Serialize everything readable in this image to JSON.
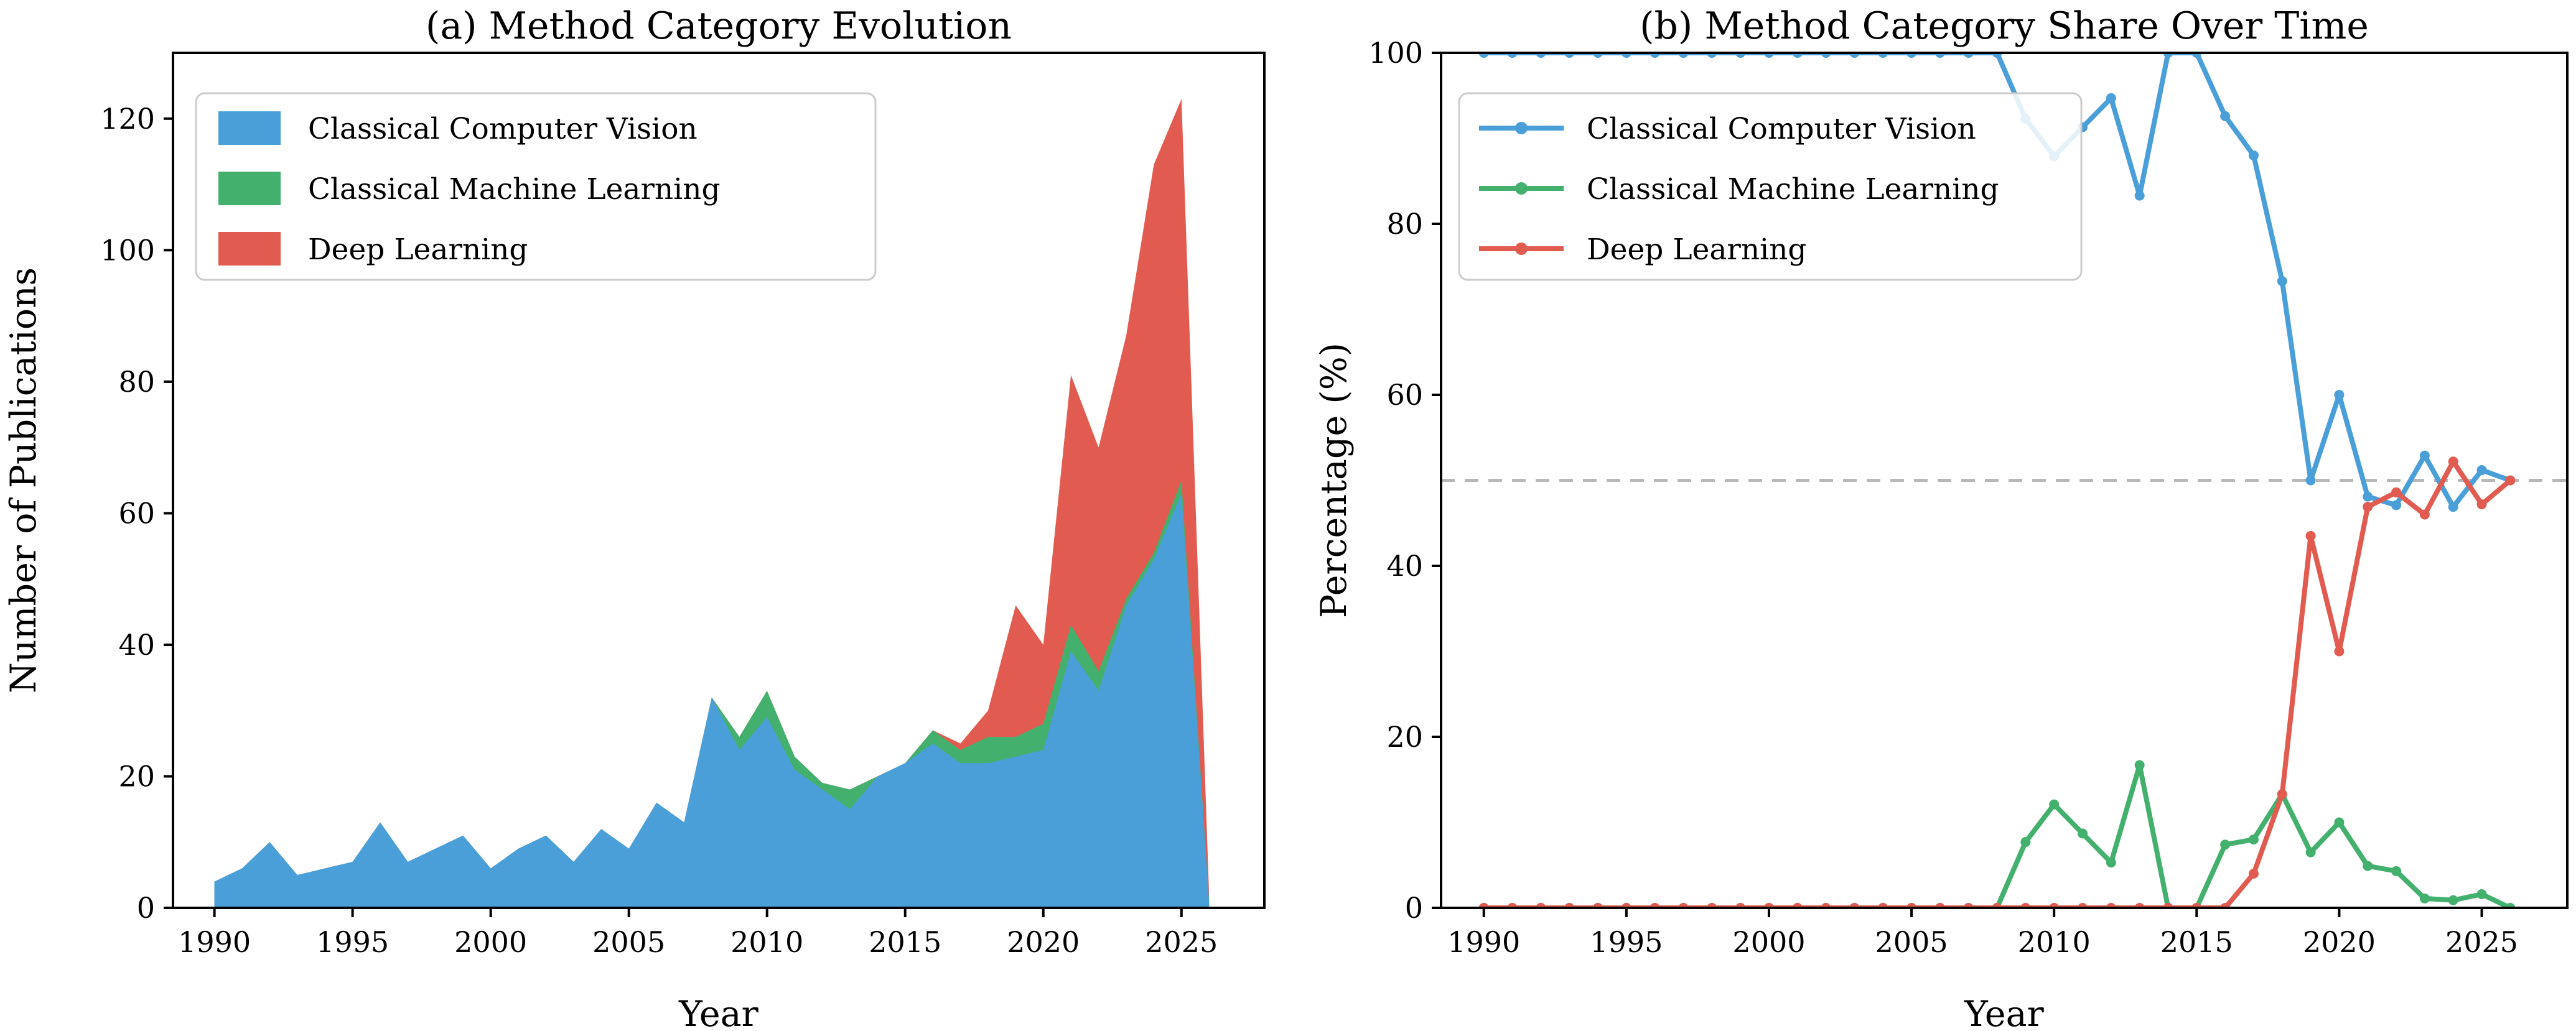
{
  "figure": {
    "background": "#ffffff",
    "accent_colors": {
      "classical_computer_vision": "#4a9fd8",
      "classical_machine_learning": "#44b06e",
      "deep_learning": "#e15b50",
      "reference_line": "#b8b8b8",
      "axis": "#000000"
    }
  },
  "chart_data": [
    {
      "type": "area",
      "stacked": true,
      "title": "(a) Method Category Evolution",
      "xlabel": "Year",
      "ylabel": "Number of Publications",
      "xlim": [
        1988.5,
        2028
      ],
      "ylim": [
        0,
        130
      ],
      "xticks": [
        1990,
        1995,
        2000,
        2005,
        2010,
        2015,
        2020,
        2025
      ],
      "yticks": [
        0,
        20,
        40,
        60,
        80,
        100,
        120
      ],
      "grid": false,
      "legend_position": "upper left",
      "x": [
        1990,
        1991,
        1992,
        1993,
        1994,
        1995,
        1996,
        1997,
        1998,
        1999,
        2000,
        2001,
        2002,
        2003,
        2004,
        2005,
        2006,
        2007,
        2008,
        2009,
        2010,
        2011,
        2012,
        2013,
        2014,
        2015,
        2016,
        2017,
        2018,
        2019,
        2020,
        2021,
        2022,
        2023,
        2024,
        2025,
        2026
      ],
      "series": [
        {
          "name": "Classical Computer Vision",
          "color": "#4a9fd8",
          "values": [
            4,
            6,
            10,
            5,
            6,
            7,
            13,
            7,
            9,
            11,
            6,
            9,
            11,
            7,
            12,
            9,
            16,
            13,
            32,
            24,
            29,
            21,
            18,
            15,
            20,
            22,
            25,
            22,
            22,
            23,
            24,
            39,
            33,
            46,
            53,
            63,
            1
          ]
        },
        {
          "name": "Classical Machine Learning",
          "color": "#44b06e",
          "values": [
            0,
            0,
            0,
            0,
            0,
            0,
            0,
            0,
            0,
            0,
            0,
            0,
            0,
            0,
            0,
            0,
            0,
            0,
            0,
            2,
            4,
            2,
            1,
            3,
            0,
            0,
            2,
            2,
            4,
            3,
            4,
            4,
            3,
            1,
            1,
            2,
            0
          ]
        },
        {
          "name": "Deep Learning",
          "color": "#e15b50",
          "values": [
            0,
            0,
            0,
            0,
            0,
            0,
            0,
            0,
            0,
            0,
            0,
            0,
            0,
            0,
            0,
            0,
            0,
            0,
            0,
            0,
            0,
            0,
            0,
            0,
            0,
            0,
            0,
            1,
            4,
            20,
            12,
            38,
            34,
            40,
            59,
            58,
            1
          ]
        }
      ]
    },
    {
      "type": "line",
      "title": "(b) Method Category Share Over Time",
      "xlabel": "Year",
      "ylabel": "Percentage (%)",
      "xlim": [
        1988.5,
        2028
      ],
      "ylim": [
        0,
        100
      ],
      "xticks": [
        1990,
        1995,
        2000,
        2005,
        2010,
        2015,
        2020,
        2025
      ],
      "yticks": [
        0,
        20,
        40,
        60,
        80,
        100
      ],
      "grid": false,
      "legend_position": "upper left",
      "reference_line": {
        "y": 50,
        "style": "dashed",
        "color": "#b8b8b8"
      },
      "x": [
        1990,
        1991,
        1992,
        1993,
        1994,
        1995,
        1996,
        1997,
        1998,
        1999,
        2000,
        2001,
        2002,
        2003,
        2004,
        2005,
        2006,
        2007,
        2008,
        2009,
        2010,
        2011,
        2012,
        2013,
        2014,
        2015,
        2016,
        2017,
        2018,
        2019,
        2020,
        2021,
        2022,
        2023,
        2024,
        2025,
        2026
      ],
      "series": [
        {
          "name": "Classical Computer Vision",
          "color": "#4a9fd8",
          "values": [
            100,
            100,
            100,
            100,
            100,
            100,
            100,
            100,
            100,
            100,
            100,
            100,
            100,
            100,
            100,
            100,
            100,
            100,
            100,
            92.3,
            87.9,
            91.3,
            94.7,
            83.3,
            100,
            100,
            92.6,
            88.0,
            73.3,
            50.0,
            60.0,
            48.1,
            47.1,
            52.9,
            46.9,
            51.2,
            50.0
          ]
        },
        {
          "name": "Classical Machine Learning",
          "color": "#44b06e",
          "values": [
            0,
            0,
            0,
            0,
            0,
            0,
            0,
            0,
            0,
            0,
            0,
            0,
            0,
            0,
            0,
            0,
            0,
            0,
            0,
            7.7,
            12.1,
            8.7,
            5.3,
            16.7,
            0,
            0,
            7.4,
            8.0,
            13.3,
            6.5,
            10.0,
            4.9,
            4.3,
            1.1,
            0.9,
            1.6,
            0
          ]
        },
        {
          "name": "Deep Learning",
          "color": "#e15b50",
          "values": [
            0,
            0,
            0,
            0,
            0,
            0,
            0,
            0,
            0,
            0,
            0,
            0,
            0,
            0,
            0,
            0,
            0,
            0,
            0,
            0,
            0,
            0,
            0,
            0,
            0,
            0,
            0,
            4.0,
            13.3,
            43.5,
            30.0,
            46.9,
            48.6,
            46.0,
            52.2,
            47.2,
            50.0
          ]
        }
      ]
    }
  ]
}
